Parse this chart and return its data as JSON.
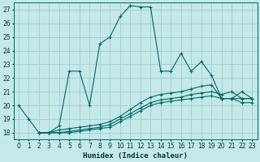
{
  "xlabel": "Humidex (Indice chaleur)",
  "bg_color": "#c5e8e8",
  "grid_color": "#9ecece",
  "line_color": "#006868",
  "xlim": [
    -0.5,
    23.5
  ],
  "ylim": [
    17.5,
    27.5
  ],
  "xticks": [
    0,
    1,
    2,
    3,
    4,
    5,
    6,
    7,
    8,
    9,
    10,
    11,
    12,
    13,
    14,
    15,
    16,
    17,
    18,
    19,
    20,
    21,
    22,
    23
  ],
  "yticks": [
    18,
    19,
    20,
    21,
    22,
    23,
    24,
    25,
    26,
    27
  ],
  "line1_x": [
    0,
    1,
    2,
    3,
    4,
    5,
    6,
    7,
    8,
    9,
    10,
    11,
    12,
    13,
    14,
    15,
    16,
    17,
    18,
    19,
    20,
    21,
    22,
    23
  ],
  "line1_y": [
    20.0,
    19.0,
    18.0,
    18.0,
    18.5,
    22.5,
    22.5,
    20.0,
    24.5,
    25.0,
    26.5,
    27.3,
    27.2,
    27.2,
    22.5,
    22.5,
    23.8,
    22.5,
    23.2,
    22.2,
    20.5,
    20.5,
    21.0,
    20.5
  ],
  "line2_x": [
    2,
    3,
    4,
    5,
    6,
    7,
    8,
    9,
    10,
    11,
    12,
    13,
    14,
    15,
    16,
    17,
    18,
    19,
    20,
    21,
    22,
    23
  ],
  "line2_y": [
    18.0,
    18.0,
    18.2,
    18.3,
    18.4,
    18.5,
    18.6,
    18.8,
    19.2,
    19.7,
    20.2,
    20.6,
    20.8,
    20.9,
    21.0,
    21.2,
    21.4,
    21.5,
    20.5,
    20.5,
    20.5,
    20.5
  ],
  "line3_x": [
    2,
    3,
    4,
    5,
    6,
    7,
    8,
    9,
    10,
    11,
    12,
    13,
    14,
    15,
    16,
    17,
    18,
    19,
    20,
    21,
    22,
    23
  ],
  "line3_y": [
    18.0,
    18.0,
    18.0,
    18.1,
    18.2,
    18.3,
    18.4,
    18.6,
    19.0,
    19.4,
    19.8,
    20.2,
    20.4,
    20.5,
    20.6,
    20.8,
    20.9,
    21.0,
    20.8,
    21.0,
    20.5,
    20.5
  ],
  "line4_x": [
    2,
    3,
    4,
    5,
    6,
    7,
    8,
    9,
    10,
    11,
    12,
    13,
    14,
    15,
    16,
    17,
    18,
    19,
    20,
    21,
    22,
    23
  ],
  "line4_y": [
    18.0,
    18.0,
    18.0,
    18.0,
    18.1,
    18.2,
    18.3,
    18.4,
    18.8,
    19.2,
    19.6,
    20.0,
    20.2,
    20.3,
    20.4,
    20.5,
    20.6,
    20.7,
    20.5,
    20.5,
    20.2,
    20.2
  ]
}
